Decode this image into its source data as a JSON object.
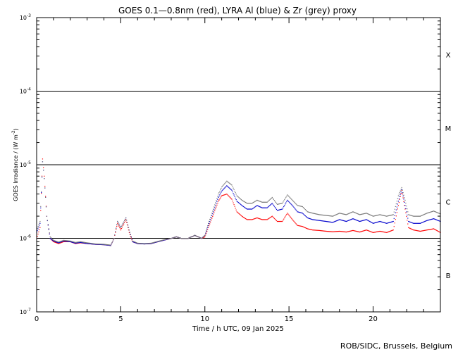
{
  "chart_data": {
    "type": "scatter",
    "title": "GOES 0.1—0.8nm (red), LYRA Al (blue) & Zr (grey) proxy",
    "xlabel": "Time / h UTC, 09 Jan 2025",
    "ylabel_main": "GOES Irradiance / (W m",
    "ylabel_sup": "-2",
    "ylabel_end": ")",
    "footer": "ROB/SIDC, Brussels, Belgium",
    "xlim": [
      0,
      24
    ],
    "ylim_log10": [
      -7,
      -3
    ],
    "y_scale": "log",
    "x_ticks": [
      {
        "value": 0,
        "label": "0"
      },
      {
        "value": 5,
        "label": "5"
      },
      {
        "value": 10,
        "label": "10"
      },
      {
        "value": 15,
        "label": "15"
      },
      {
        "value": 20,
        "label": "20"
      }
    ],
    "y_ticks": [
      {
        "exp": -7,
        "base": "10",
        "sup": "-7"
      },
      {
        "exp": -6,
        "base": "10",
        "sup": "-6"
      },
      {
        "exp": -5,
        "base": "10",
        "sup": "-5"
      },
      {
        "exp": -4,
        "base": "10",
        "sup": "-4"
      },
      {
        "exp": -3,
        "base": "10",
        "sup": "-3"
      }
    ],
    "flare_class_lines": [
      -6,
      -5,
      -4
    ],
    "flare_classes": [
      {
        "label": "B",
        "exp": -6.5
      },
      {
        "label": "C",
        "exp": -5.5
      },
      {
        "label": "M",
        "exp": -4.5
      },
      {
        "label": "X",
        "exp": -3.5
      }
    ],
    "series": [
      {
        "name": "red",
        "color": "#ff0000",
        "x": [
          0,
          0.2,
          0.35,
          0.45,
          0.6,
          0.8,
          1.0,
          1.3,
          1.6,
          2.0,
          2.3,
          2.6,
          3.0,
          3.5,
          4.0,
          4.4,
          4.6,
          4.8,
          5.0,
          5.3,
          5.5,
          5.7,
          6.0,
          6.4,
          6.8,
          7.2,
          7.6,
          8.0,
          8.3,
          8.6,
          9.0,
          9.4,
          9.8,
          10.0,
          10.2,
          10.5,
          10.8,
          11.0,
          11.3,
          11.6,
          11.9,
          12.2,
          12.5,
          12.8,
          13.1,
          13.4,
          13.7,
          14.0,
          14.3,
          14.6,
          14.9,
          15.2,
          15.5,
          15.8,
          16.1,
          16.4,
          16.8,
          17.2,
          17.6,
          18.0,
          18.4,
          18.8,
          19.2,
          19.6,
          20.0,
          20.4,
          20.8,
          21.2,
          21.5,
          21.7,
          21.9,
          22.1,
          22.4,
          22.8,
          23.2,
          23.6,
          24.0
        ],
        "y": [
          1e-06,
          1.4e-06,
          1.2e-05,
          7e-06,
          2e-06,
          1e-06,
          9e-07,
          8.5e-07,
          9e-07,
          9e-07,
          8.5e-07,
          8.7e-07,
          8.5e-07,
          8.3e-07,
          8.2e-07,
          8e-07,
          1e-06,
          1.6e-06,
          1.3e-06,
          1.8e-06,
          1.2e-06,
          9e-07,
          8.5e-07,
          8.4e-07,
          8.5e-07,
          9e-07,
          9.5e-07,
          1e-06,
          1.05e-06,
          1e-06,
          1e-06,
          1.1e-06,
          1e-06,
          1.05e-06,
          1.4e-06,
          2.1e-06,
          3.2e-06,
          3.8e-06,
          4e-06,
          3.4e-06,
          2.3e-06,
          2e-06,
          1.8e-06,
          1.8e-06,
          1.9e-06,
          1.8e-06,
          1.8e-06,
          2e-06,
          1.7e-06,
          1.7e-06,
          2.2e-06,
          1.8e-06,
          1.5e-06,
          1.45e-06,
          1.35e-06,
          1.3e-06,
          1.28e-06,
          1.25e-06,
          1.23e-06,
          1.25e-06,
          1.22e-06,
          1.28e-06,
          1.22e-06,
          1.3e-06,
          1.2e-06,
          1.25e-06,
          1.2e-06,
          1.3e-06,
          2.8e-06,
          4.5e-06,
          2.5e-06,
          1.4e-06,
          1.3e-06,
          1.25e-06,
          1.3e-06,
          1.35e-06,
          1.2e-06
        ]
      },
      {
        "name": "blue",
        "color": "#0000cc",
        "x": [
          0,
          0.2,
          0.35,
          0.45,
          0.6,
          0.8,
          1.0,
          1.3,
          1.6,
          2.0,
          2.3,
          2.6,
          3.0,
          3.5,
          4.0,
          4.4,
          4.6,
          4.8,
          5.0,
          5.3,
          5.5,
          5.7,
          6.0,
          6.4,
          6.8,
          7.2,
          7.6,
          8.0,
          8.3,
          8.6,
          9.0,
          9.4,
          9.8,
          10.0,
          10.2,
          10.5,
          10.8,
          11.0,
          11.3,
          11.6,
          11.9,
          12.2,
          12.5,
          12.8,
          13.1,
          13.4,
          13.7,
          14.0,
          14.3,
          14.6,
          14.9,
          15.2,
          15.5,
          15.8,
          16.1,
          16.4,
          16.8,
          17.2,
          17.6,
          18.0,
          18.4,
          18.8,
          19.2,
          19.6,
          20.0,
          20.4,
          20.8,
          21.2,
          21.5,
          21.7,
          21.9,
          22.1,
          22.4,
          22.8,
          23.2,
          23.6,
          24.0
        ],
        "y": [
          1.2e-06,
          1.6e-06,
          1.1e-05,
          6.5e-06,
          2e-06,
          1e-06,
          9.2e-07,
          8.7e-07,
          9.2e-07,
          9e-07,
          8.6e-07,
          8.8e-07,
          8.5e-07,
          8.3e-07,
          8.2e-07,
          8e-07,
          1e-06,
          1.7e-06,
          1.4e-06,
          1.9e-06,
          1.3e-06,
          9e-07,
          8.5e-07,
          8.4e-07,
          8.5e-07,
          9e-07,
          9.5e-07,
          1e-06,
          1.05e-06,
          1e-06,
          1e-06,
          1.1e-06,
          1e-06,
          1.1e-06,
          1.5e-06,
          2.3e-06,
          3.6e-06,
          4.4e-06,
          5.2e-06,
          4.5e-06,
          3.2e-06,
          2.8e-06,
          2.5e-06,
          2.5e-06,
          2.8e-06,
          2.6e-06,
          2.6e-06,
          3e-06,
          2.4e-06,
          2.5e-06,
          3.3e-06,
          2.8e-06,
          2.3e-06,
          2.2e-06,
          1.9e-06,
          1.8e-06,
          1.75e-06,
          1.7e-06,
          1.65e-06,
          1.8e-06,
          1.7e-06,
          1.85e-06,
          1.7e-06,
          1.8e-06,
          1.6e-06,
          1.7e-06,
          1.6e-06,
          1.7e-06,
          3.2e-06,
          4.6e-06,
          2.8e-06,
          1.7e-06,
          1.6e-06,
          1.6e-06,
          1.75e-06,
          1.85e-06,
          1.7e-06
        ]
      },
      {
        "name": "grey",
        "color": "#777777",
        "x": [
          0,
          0.2,
          0.35,
          0.45,
          0.6,
          0.8,
          1.0,
          1.3,
          1.6,
          2.0,
          2.3,
          2.6,
          3.0,
          3.5,
          4.0,
          4.4,
          4.6,
          4.8,
          5.0,
          5.3,
          5.5,
          5.7,
          6.0,
          6.4,
          6.8,
          7.2,
          7.6,
          8.0,
          8.3,
          8.6,
          9.0,
          9.4,
          9.8,
          10.0,
          10.2,
          10.5,
          10.8,
          11.0,
          11.3,
          11.6,
          11.9,
          12.2,
          12.5,
          12.8,
          13.1,
          13.4,
          13.7,
          14.0,
          14.3,
          14.6,
          14.9,
          15.2,
          15.5,
          15.8,
          16.1,
          16.4,
          16.8,
          17.2,
          17.6,
          18.0,
          18.4,
          18.8,
          19.2,
          19.6,
          20.0,
          20.4,
          20.8,
          21.2,
          21.5,
          21.7,
          21.9,
          22.1,
          22.4,
          22.8,
          23.2,
          23.6,
          24.0
        ],
        "y": [
          1.3e-06,
          1.7e-06,
          1.1e-05,
          6.5e-06,
          2e-06,
          1.05e-06,
          9.4e-07,
          8.9e-07,
          9.4e-07,
          9.2e-07,
          8.8e-07,
          9e-07,
          8.7e-07,
          8.4e-07,
          8.3e-07,
          8.1e-07,
          1e-06,
          1.7e-06,
          1.4e-06,
          1.9e-06,
          1.3e-06,
          9.2e-07,
          8.6e-07,
          8.5e-07,
          8.6e-07,
          9.1e-07,
          9.6e-07,
          1e-06,
          1.05e-06,
          1e-06,
          1e-06,
          1.1e-06,
          1e-06,
          1.1e-06,
          1.6e-06,
          2.5e-06,
          4e-06,
          5e-06,
          6e-06,
          5.3e-06,
          3.8e-06,
          3.3e-06,
          3e-06,
          3e-06,
          3.3e-06,
          3.1e-06,
          3.1e-06,
          3.6e-06,
          2.9e-06,
          3e-06,
          3.9e-06,
          3.3e-06,
          2.8e-06,
          2.7e-06,
          2.3e-06,
          2.2e-06,
          2.1e-06,
          2.05e-06,
          2e-06,
          2.2e-06,
          2.1e-06,
          2.3e-06,
          2.1e-06,
          2.2e-06,
          2e-06,
          2.1e-06,
          2e-06,
          2.1e-06,
          3.8e-06,
          4.9e-06,
          3.3e-06,
          2.1e-06,
          2e-06,
          2e-06,
          2.2e-06,
          2.35e-06,
          2.15e-06
        ]
      }
    ]
  }
}
